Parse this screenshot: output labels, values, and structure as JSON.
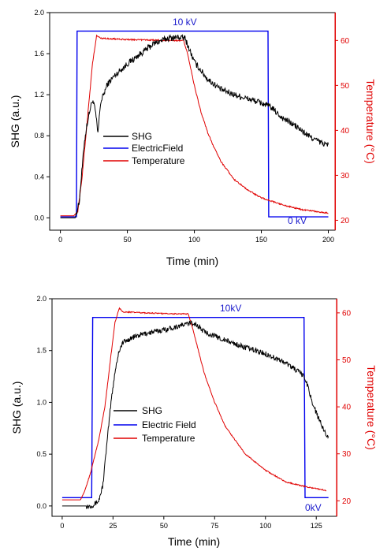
{
  "colors": {
    "shg": "#000000",
    "field": "#0000ee",
    "temp": "#e00000",
    "axis": "#000000"
  },
  "chart_data": [
    {
      "type": "line",
      "title": "",
      "xlabel": "Time (min)",
      "ylabel": "SHG (a.u.)",
      "y2label": "Temperature (°C)",
      "xlim": [
        -8,
        205
      ],
      "ylim": [
        -0.12,
        2.0
      ],
      "y2lim": [
        17.8,
        66.2
      ],
      "xticks": [
        0,
        50,
        100,
        150,
        200
      ],
      "yticks": [
        0.0,
        0.4,
        0.8,
        1.2,
        1.6,
        2.0
      ],
      "ytick_labels": [
        "0.0",
        "0.4",
        "0.8",
        "1.2",
        "1.6",
        "2.0"
      ],
      "y2ticks": [
        20,
        30,
        40,
        50,
        60
      ],
      "legend_position": "center-left",
      "annotations": [
        {
          "text": "10 kV",
          "x": 92,
          "y": 1.9
        },
        {
          "text": "0 kV",
          "x": 173,
          "y": -0.07
        }
      ],
      "series": [
        {
          "name": "SHG",
          "axis": "left",
          "color": "#000000",
          "noise": 0.03,
          "points": [
            [
              0,
              0.0
            ],
            [
              11,
              0.0
            ],
            [
              14,
              0.15
            ],
            [
              16,
              0.45
            ],
            [
              18,
              0.75
            ],
            [
              20,
              0.92
            ],
            [
              22,
              1.05
            ],
            [
              24,
              1.15
            ],
            [
              26,
              1.05
            ],
            [
              28,
              0.82
            ],
            [
              30,
              1.12
            ],
            [
              35,
              1.3
            ],
            [
              40,
              1.38
            ],
            [
              50,
              1.5
            ],
            [
              60,
              1.6
            ],
            [
              70,
              1.7
            ],
            [
              80,
              1.75
            ],
            [
              88,
              1.76
            ],
            [
              93,
              1.75
            ],
            [
              96,
              1.65
            ],
            [
              100,
              1.52
            ],
            [
              110,
              1.35
            ],
            [
              120,
              1.25
            ],
            [
              130,
              1.2
            ],
            [
              140,
              1.16
            ],
            [
              150,
              1.12
            ],
            [
              157,
              1.08
            ],
            [
              165,
              0.98
            ],
            [
              175,
              0.9
            ],
            [
              185,
              0.8
            ],
            [
              195,
              0.73
            ],
            [
              200,
              0.71
            ]
          ]
        },
        {
          "name": "ElectricField",
          "axis": "left",
          "color": "#0000ee",
          "noise": 0,
          "points": [
            [
              0,
              0.01
            ],
            [
              12,
              0.01
            ],
            [
              12.5,
              1.82
            ],
            [
              155,
              1.82
            ],
            [
              155.5,
              0.01
            ],
            [
              200,
              0.01
            ]
          ]
        },
        {
          "name": "Temperature",
          "axis": "right",
          "color": "#e00000",
          "noise": 0.15,
          "points": [
            [
              0,
              21
            ],
            [
              10,
              21
            ],
            [
              13,
              22
            ],
            [
              16,
              29
            ],
            [
              20,
              42
            ],
            [
              24,
              55
            ],
            [
              27,
              61
            ],
            [
              30,
              60.5
            ],
            [
              50,
              60.2
            ],
            [
              80,
              60
            ],
            [
              92,
              60
            ],
            [
              95,
              57
            ],
            [
              100,
              50
            ],
            [
              105,
              44
            ],
            [
              110,
              39.5
            ],
            [
              115,
              36
            ],
            [
              120,
              33
            ],
            [
              130,
              29
            ],
            [
              140,
              26.7
            ],
            [
              150,
              25
            ],
            [
              160,
              24
            ],
            [
              170,
              23.1
            ],
            [
              180,
              22.4
            ],
            [
              190,
              22
            ],
            [
              200,
              21.6
            ]
          ]
        }
      ]
    },
    {
      "type": "line",
      "title": "",
      "xlabel": "Time (min)",
      "ylabel": "SHG (a.u.)",
      "y2label": "Temperature (°C)",
      "xlim": [
        -5,
        135
      ],
      "ylim": [
        -0.1,
        2.0
      ],
      "y2lim": [
        16.7,
        63.0
      ],
      "xticks": [
        0,
        25,
        50,
        75,
        100,
        125
      ],
      "yticks": [
        0.0,
        0.5,
        1.0,
        1.5,
        2.0
      ],
      "ytick_labels": [
        "0.0",
        "0.5",
        "1.0",
        "1.5",
        "2.0"
      ],
      "y2ticks": [
        20,
        30,
        40,
        50,
        60
      ],
      "legend_position": "center-left",
      "annotations": [
        {
          "text": "10kV",
          "x": 67,
          "y": 1.9
        },
        {
          "text": "0kV",
          "x": 126,
          "y": -0.06
        }
      ],
      "series": [
        {
          "name": "SHG",
          "axis": "left",
          "color": "#000000",
          "noise": 0.025,
          "points": [
            [
              0,
              0.0
            ],
            [
              14,
              0.0
            ],
            [
              16,
              0.02
            ],
            [
              18,
              0.05
            ],
            [
              20,
              0.2
            ],
            [
              22,
              0.6
            ],
            [
              24,
              1.0
            ],
            [
              26,
              1.3
            ],
            [
              28,
              1.5
            ],
            [
              30,
              1.58
            ],
            [
              35,
              1.63
            ],
            [
              40,
              1.66
            ],
            [
              50,
              1.7
            ],
            [
              60,
              1.75
            ],
            [
              64,
              1.77
            ],
            [
              66,
              1.75
            ],
            [
              70,
              1.68
            ],
            [
              80,
              1.6
            ],
            [
              90,
              1.53
            ],
            [
              100,
              1.47
            ],
            [
              110,
              1.38
            ],
            [
              116,
              1.3
            ],
            [
              119,
              1.25
            ],
            [
              121,
              1.15
            ],
            [
              123,
              1.0
            ],
            [
              126,
              0.85
            ],
            [
              129,
              0.72
            ],
            [
              131,
              0.67
            ]
          ]
        },
        {
          "name": "Electric Field",
          "axis": "left",
          "color": "#0000ee",
          "noise": 0,
          "points": [
            [
              0,
              0.08
            ],
            [
              14.5,
              0.08
            ],
            [
              15,
              1.82
            ],
            [
              119,
              1.82
            ],
            [
              119.5,
              0.08
            ],
            [
              131,
              0.08
            ]
          ]
        },
        {
          "name": "Temperature",
          "axis": "right",
          "color": "#e00000",
          "noise": 0.12,
          "points": [
            [
              0,
              20.2
            ],
            [
              9,
              20.2
            ],
            [
              11,
              22
            ],
            [
              14,
              26
            ],
            [
              18,
              33
            ],
            [
              21,
              40
            ],
            [
              24,
              51
            ],
            [
              26,
              58
            ],
            [
              28,
              61
            ],
            [
              30,
              60.2
            ],
            [
              40,
              60
            ],
            [
              55,
              59.8
            ],
            [
              62,
              59.8
            ],
            [
              64,
              57
            ],
            [
              67,
              52
            ],
            [
              70,
              47
            ],
            [
              75,
              41
            ],
            [
              80,
              36
            ],
            [
              90,
              30
            ],
            [
              100,
              26.5
            ],
            [
              110,
              24
            ],
            [
              120,
              23
            ],
            [
              130,
              22.2
            ]
          ]
        }
      ]
    }
  ]
}
